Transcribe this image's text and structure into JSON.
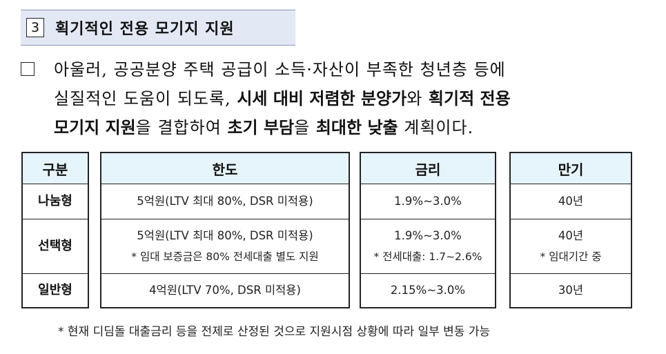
{
  "section": {
    "number": "3",
    "title": "획기적인 전용 모기지 지원"
  },
  "paragraph": {
    "line1": "아울러, 공공분양 주택 공급이 소득·자산이 부족한 청년층 등에",
    "line2_a": "실질적인 도움이 되도록, ",
    "line2_b": "시세 대비 저렴한 분양가",
    "line2_c": "와 ",
    "line2_d": "획기적 전용",
    "line3_a": "모기지 지원",
    "line3_b": "을 결합하여 ",
    "line3_c": "초기 부담",
    "line3_d": "을 ",
    "line3_e": "최대한 낮출",
    "line3_f": " 계획이다."
  },
  "table": {
    "headers": {
      "type": "구분",
      "limit": "한도",
      "rate": "금리",
      "term": "만기"
    },
    "rows": [
      {
        "type": "나눔형",
        "limit": "5억원(LTV 최대 80%, DSR 미적용)",
        "limit_note": "",
        "rate": "1.9%~3.0%",
        "rate_note": "",
        "term": "40년",
        "term_note": ""
      },
      {
        "type": "선택형",
        "limit": "5억원(LTV 최대 80%, DSR 미적용)",
        "limit_note": "* 임대 보증금은 80% 전세대출 별도 지원",
        "rate": "1.9%~3.0%",
        "rate_note": "* 전세대출: 1.7~2.6%",
        "term": "40년",
        "term_note": "* 임대기간 중"
      },
      {
        "type": "일반형",
        "limit": "4억원(LTV 70%, DSR 미적용)",
        "limit_note": "",
        "rate": "2.15%~3.0%",
        "rate_note": "",
        "term": "30년",
        "term_note": ""
      }
    ]
  },
  "footnote": "* 현재 디딤돌 대출금리 등을 전제로 산정된 것으로 지원시점 상황에 따라 일부 변동 가능"
}
